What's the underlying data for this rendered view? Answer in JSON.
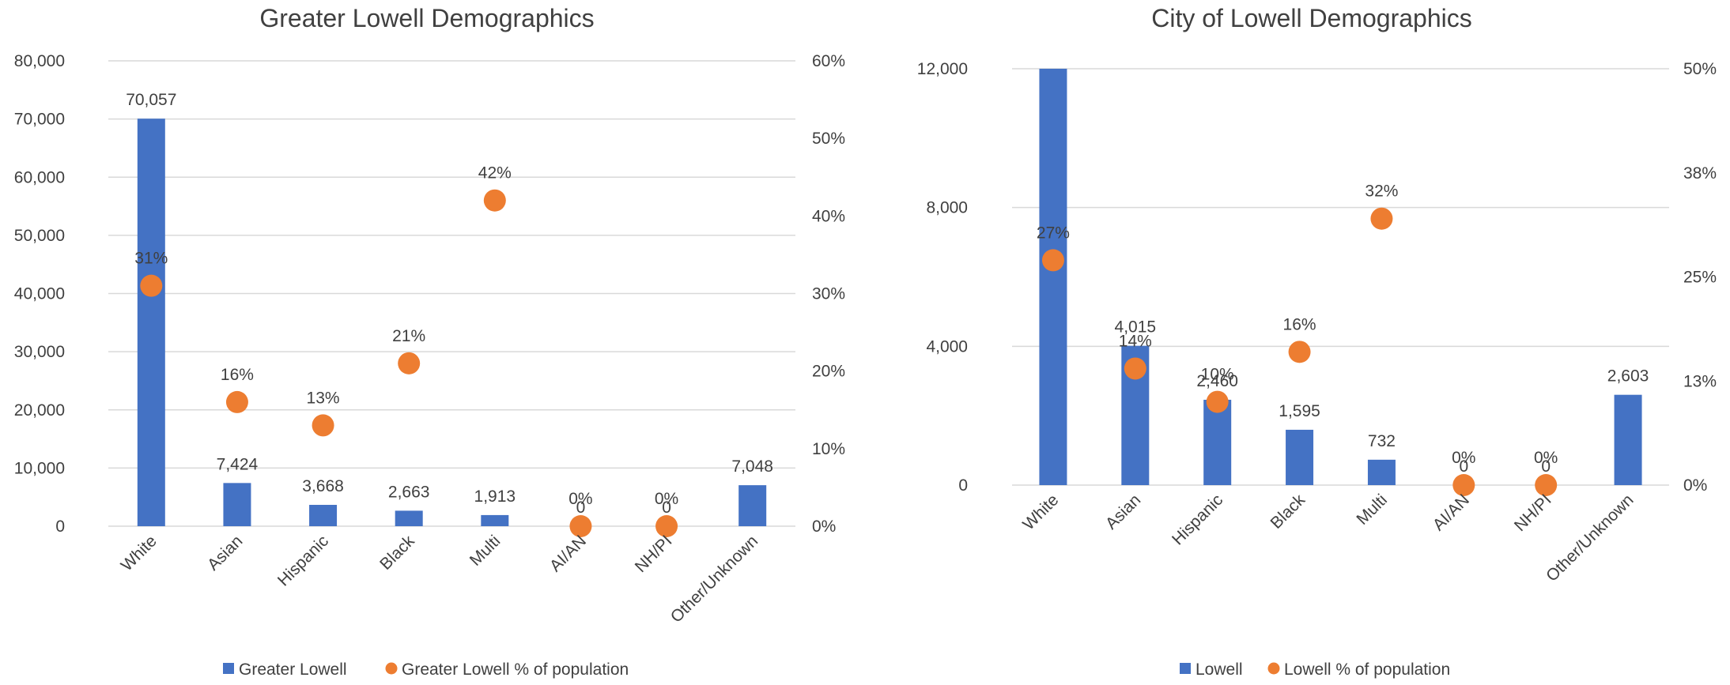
{
  "chart_data": [
    {
      "type": "bar",
      "title": "Greater Lowell Demographics",
      "categories": [
        "White",
        "Asian",
        "Hispanic",
        "Black",
        "Multi",
        "AI/AN",
        "NH/PI",
        "Other/Unknown"
      ],
      "series": [
        {
          "name": "Greater Lowell",
          "kind": "bar",
          "axis": "primary",
          "values": [
            70057,
            7424,
            3668,
            2663,
            1913,
            0,
            0,
            7048
          ],
          "labels": [
            "70,057",
            "7,424",
            "3,668",
            "2,663",
            "1,913",
            "0",
            "0",
            "7,048"
          ]
        },
        {
          "name": "Greater Lowell % of population",
          "kind": "scatter",
          "axis": "secondary",
          "values": [
            0.31,
            0.16,
            0.13,
            0.21,
            0.42,
            0,
            0,
            null
          ],
          "labels": [
            "31%",
            "16%",
            "13%",
            "21%",
            "42%",
            "0%",
            "0%",
            null
          ]
        }
      ],
      "y_primary": {
        "lim": [
          0,
          80000
        ],
        "ticks": [
          0,
          10000,
          20000,
          30000,
          40000,
          50000,
          60000,
          70000,
          80000
        ],
        "tick_labels": [
          "0",
          "10,000",
          "20,000",
          "30,000",
          "40,000",
          "50,000",
          "60,000",
          "70,000",
          "80,000"
        ]
      },
      "y_secondary": {
        "lim": [
          0,
          0.6
        ],
        "ticks": [
          0,
          0.1,
          0.2,
          0.3,
          0.4,
          0.5,
          0.6
        ],
        "tick_labels": [
          "0%",
          "10%",
          "20%",
          "30%",
          "40%",
          "50%",
          "60%"
        ]
      },
      "grid": true,
      "legend": "bottom"
    },
    {
      "type": "bar",
      "title": "City of  Lowell Demographics",
      "categories": [
        "White",
        "Asian",
        "Hispanic",
        "Black",
        "Multi",
        "AI/AN",
        "NH/PI",
        "Other/Unknown"
      ],
      "series": [
        {
          "name": "Lowell",
          "kind": "bar",
          "axis": "primary",
          "values": [
            12000,
            4015,
            2460,
            1595,
            732,
            0,
            0,
            2603
          ],
          "labels": [
            null,
            "4,015",
            "2,460",
            "1,595",
            "732",
            "0",
            "0",
            "2,603"
          ]
        },
        {
          "name": "Lowell % of population",
          "kind": "scatter",
          "axis": "secondary",
          "values": [
            0.27,
            0.14,
            0.1,
            0.16,
            0.32,
            0,
            0,
            null
          ],
          "labels": [
            "27%",
            "14%",
            "10%",
            "16%",
            "32%",
            "0%",
            "0%",
            null
          ]
        }
      ],
      "y_primary": {
        "lim": [
          0,
          12000
        ],
        "ticks": [
          0,
          4000,
          8000,
          12000
        ],
        "tick_labels": [
          "0",
          "4,000",
          "8,000",
          "12,000"
        ]
      },
      "y_secondary": {
        "lim": [
          0,
          0.5
        ],
        "ticks": [
          0,
          0.125,
          0.25,
          0.375,
          0.5
        ],
        "tick_labels": [
          "0%",
          "13%",
          "25%",
          "38%",
          "50%"
        ]
      },
      "grid": true,
      "legend": "bottom"
    }
  ],
  "colors": {
    "bar": "#4472C4",
    "dot": "#ED7D31",
    "grid": "#D9D9D9",
    "text": "#404040"
  }
}
